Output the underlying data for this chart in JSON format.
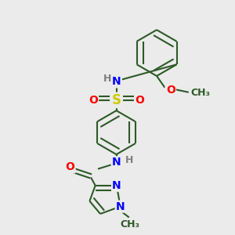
{
  "bg_color": "#ebebeb",
  "bond_color": "#2d5a27",
  "bond_width": 1.5,
  "atom_colors": {
    "N": "#0000ff",
    "O": "#ff0000",
    "S": "#cccc00",
    "C": "#1a1a1a",
    "H": "#808080"
  },
  "font_size": 10,
  "dbo": 0.09
}
